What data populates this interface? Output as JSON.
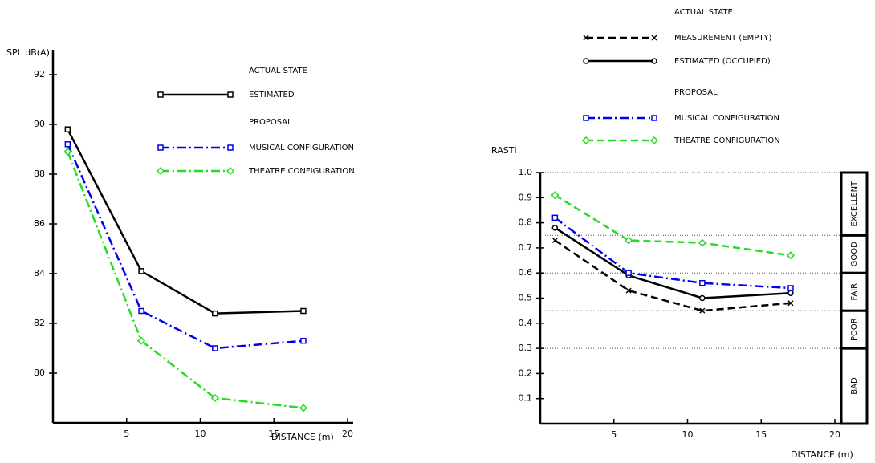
{
  "chart_data": [
    {
      "type": "line",
      "y_label": "SPL dB(A)",
      "x_label": "DISTANCE (m)",
      "xlim": [
        0,
        20
      ],
      "xticks": [
        5,
        10,
        15,
        20
      ],
      "ylim": [
        78,
        93
      ],
      "yticks": [
        80,
        82,
        84,
        86,
        88,
        90,
        92
      ],
      "groups": [
        {
          "title": "ACTUAL STATE",
          "series": [
            {
              "name": "ESTIMATED",
              "color": "#000000",
              "dash": "solid",
              "marker": "square",
              "x": [
                1,
                6,
                11,
                17
              ],
              "values": [
                89.8,
                84.1,
                82.4,
                82.5
              ]
            }
          ]
        },
        {
          "title": "PROPOSAL",
          "series": [
            {
              "name": "MUSICAL CONFIGURATION",
              "color": "#0000ee",
              "dash": "dash-dot",
              "marker": "square",
              "x": [
                1,
                6,
                11,
                17
              ],
              "values": [
                89.2,
                82.5,
                81.0,
                81.3
              ]
            },
            {
              "name": "THEATRE CONFIGURATION",
              "color": "#22dd22",
              "dash": "dash-dot",
              "marker": "diamond",
              "x": [
                1,
                6,
                11,
                17
              ],
              "values": [
                88.9,
                81.3,
                79.0,
                78.6
              ]
            }
          ]
        }
      ]
    },
    {
      "type": "line",
      "y_label": "RASTI",
      "x_label": "DISTANCE (m)",
      "xlim": [
        0,
        20
      ],
      "xticks": [
        5,
        10,
        15,
        20
      ],
      "ylim": [
        0,
        1
      ],
      "yticks": [
        0.1,
        0.2,
        0.3,
        0.4,
        0.5,
        0.6,
        0.7,
        0.8,
        0.9,
        {
          "value": 1,
          "label": "1.0"
        }
      ],
      "bands": [
        {
          "label": "BAD",
          "from": 0,
          "to": 0.3
        },
        {
          "label": "POOR",
          "from": 0.3,
          "to": 0.45
        },
        {
          "label": "FAIR",
          "from": 0.45,
          "to": 0.6
        },
        {
          "label": "GOOD",
          "from": 0.6,
          "to": 0.75
        },
        {
          "label": "EXCELLENT",
          "from": 0.75,
          "to": 1
        }
      ],
      "groups": [
        {
          "title": "ACTUAL STATE",
          "series": [
            {
              "name": "MEASUREMENT (EMPTY)",
              "color": "#000000",
              "dash": "dashed",
              "marker": "x",
              "x": [
                1,
                6,
                11,
                17
              ],
              "values": [
                0.73,
                0.53,
                0.45,
                0.48
              ]
            },
            {
              "name": "ESTIMATED (OCCUPIED)",
              "color": "#000000",
              "dash": "solid",
              "marker": "circle",
              "x": [
                1,
                6,
                11,
                17
              ],
              "values": [
                0.78,
                0.59,
                0.5,
                0.52
              ]
            }
          ]
        },
        {
          "title": "PROPOSAL",
          "series": [
            {
              "name": "MUSICAL CONFIGURATION",
              "color": "#0000ee",
              "dash": "dash-dot",
              "marker": "square",
              "x": [
                1,
                6,
                11,
                17
              ],
              "values": [
                0.82,
                0.6,
                0.56,
                0.54
              ]
            },
            {
              "name": "THEATRE CONFIGURATION",
              "color": "#22dd22",
              "dash": "dashed",
              "marker": "diamond",
              "x": [
                1,
                6,
                11,
                17
              ],
              "values": [
                0.91,
                0.73,
                0.72,
                0.67
              ]
            }
          ]
        }
      ]
    }
  ]
}
